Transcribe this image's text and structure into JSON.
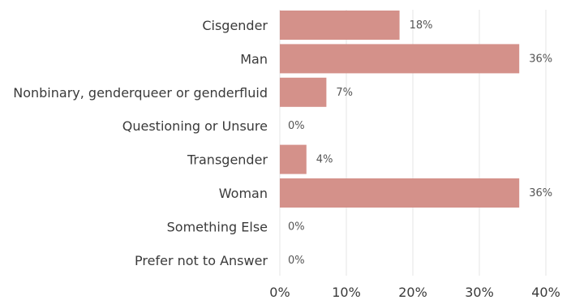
{
  "chart_data": {
    "type": "bar",
    "orientation": "horizontal",
    "categories": [
      "Cisgender",
      "Man",
      "Nonbinary, genderqueer or genderfluid",
      "Questioning or Unsure",
      "Transgender",
      "Woman",
      "Something Else",
      "Prefer not to Answer"
    ],
    "values": [
      18,
      36,
      7,
      0,
      4,
      36,
      0,
      0
    ],
    "value_labels": [
      "18%",
      "36%",
      "7%",
      "0%",
      "4%",
      "36%",
      "0%",
      "0%"
    ],
    "xlim": [
      0,
      40
    ],
    "xticks": [
      0,
      10,
      20,
      30,
      40
    ],
    "xtick_labels": [
      "0%",
      "10%",
      "20%",
      "30%",
      "40%"
    ],
    "grid": true,
    "legend": "none",
    "bar_color": "#d4918a"
  }
}
